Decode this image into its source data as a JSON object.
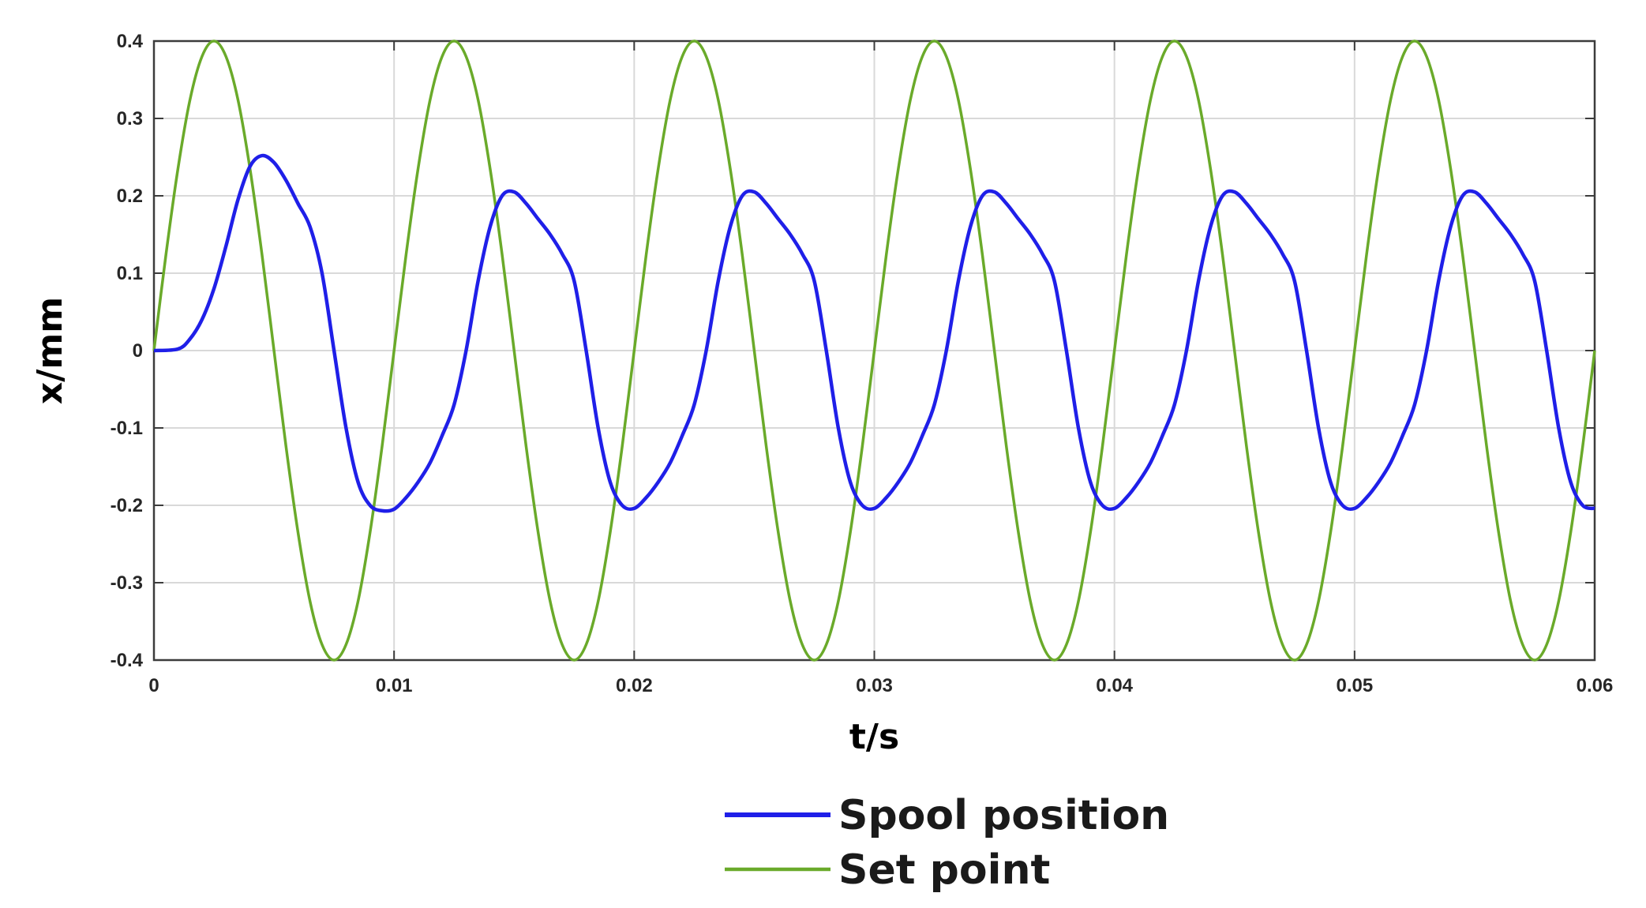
{
  "chart_data": {
    "type": "line",
    "xlabel": "t/s",
    "ylabel": "x/mm",
    "xlim": [
      0,
      0.06
    ],
    "ylim": [
      -0.4,
      0.4
    ],
    "xticks": [
      0,
      0.01,
      0.02,
      0.03,
      0.04,
      0.05,
      0.06
    ],
    "xtick_labels": [
      "0",
      "0.01",
      "0.02",
      "0.03",
      "0.04",
      "0.05",
      "0.06"
    ],
    "yticks": [
      0.4,
      0.3,
      0.2,
      0.1,
      0,
      -0.1,
      -0.2,
      -0.3,
      -0.4
    ],
    "ytick_labels": [
      "0.4",
      "0.3",
      "0.2",
      "0.1",
      "0",
      "-0.1",
      "-0.2",
      "-0.3",
      "-0.4"
    ],
    "grid": true,
    "legend_position": "bottom-center",
    "series": [
      {
        "name": "Spool position",
        "color": "#1f1fe8",
        "x": [
          0,
          0.001,
          0.0015,
          0.002,
          0.0025,
          0.003,
          0.0035,
          0.004,
          0.0045,
          0.005,
          0.0055,
          0.006,
          0.0065,
          0.007,
          0.0075,
          0.008,
          0.0085,
          0.009,
          0.0095,
          0.01,
          0.0105,
          0.011,
          0.0115,
          0.012,
          0.0125,
          0.013,
          0.0135,
          0.014,
          0.0145,
          0.015,
          0.0155,
          0.016,
          0.0165,
          0.017,
          0.0175,
          0.018,
          0.0185,
          0.019,
          0.0195,
          0.02,
          0.0205,
          0.021,
          0.0215,
          0.022,
          0.0225,
          0.023,
          0.0235,
          0.024,
          0.0245,
          0.025,
          0.0255,
          0.026,
          0.0265,
          0.027,
          0.0275,
          0.028,
          0.0285,
          0.029,
          0.0295,
          0.03,
          0.0305,
          0.031,
          0.0315,
          0.032,
          0.0325,
          0.033,
          0.0335,
          0.034,
          0.0345,
          0.035,
          0.0355,
          0.036,
          0.0365,
          0.037,
          0.0375,
          0.038,
          0.0385,
          0.039,
          0.0395,
          0.04,
          0.0405,
          0.041,
          0.0415,
          0.042,
          0.0425,
          0.043,
          0.0435,
          0.044,
          0.0445,
          0.045,
          0.0455,
          0.046,
          0.0465,
          0.047,
          0.0475,
          0.048,
          0.0485,
          0.049,
          0.0495,
          0.05,
          0.0505,
          0.051,
          0.0515,
          0.052,
          0.0525,
          0.053,
          0.0535,
          0.054,
          0.0545,
          0.055,
          0.0555,
          0.056,
          0.0565,
          0.057,
          0.0575,
          0.058,
          0.0585,
          0.059,
          0.0595,
          0.06
        ],
        "y": [
          0,
          0.002,
          0.015,
          0.04,
          0.08,
          0.135,
          0.195,
          0.238,
          0.252,
          0.243,
          0.22,
          0.19,
          0.16,
          0.1,
          0.0,
          -0.1,
          -0.17,
          -0.2,
          -0.207,
          -0.205,
          -0.19,
          -0.17,
          -0.145,
          -0.11,
          -0.07,
          0.0,
          0.09,
          0.16,
          0.2,
          0.205,
          0.19,
          0.17,
          0.15,
          0.125,
          0.09,
          0.0,
          -0.1,
          -0.17,
          -0.2,
          -0.204,
          -0.19,
          -0.17,
          -0.145,
          -0.11,
          -0.07,
          0.0,
          0.09,
          0.16,
          0.2,
          0.205,
          0.19,
          0.17,
          0.15,
          0.125,
          0.09,
          0.0,
          -0.1,
          -0.17,
          -0.2,
          -0.204,
          -0.19,
          -0.17,
          -0.145,
          -0.11,
          -0.07,
          0.0,
          0.09,
          0.16,
          0.2,
          0.205,
          0.19,
          0.17,
          0.15,
          0.125,
          0.09,
          0.0,
          -0.1,
          -0.17,
          -0.2,
          -0.204,
          -0.19,
          -0.17,
          -0.145,
          -0.11,
          -0.07,
          0.0,
          0.09,
          0.16,
          0.2,
          0.205,
          0.19,
          0.17,
          0.15,
          0.125,
          0.09,
          0.0,
          -0.1,
          -0.17,
          -0.2,
          -0.204,
          -0.19,
          -0.17,
          -0.145,
          -0.11,
          -0.07,
          0.0,
          0.09,
          0.16,
          0.2,
          0.205,
          0.19,
          0.17,
          0.15,
          0.125,
          0.09,
          0.0,
          -0.1,
          -0.17,
          -0.2,
          -0.204
        ]
      },
      {
        "name": "Set point",
        "color": "#6aaa2a",
        "x": [
          0,
          0.0005,
          0.001,
          0.0015,
          0.002,
          0.0025,
          0.003,
          0.0035,
          0.004,
          0.0045,
          0.005,
          0.0055,
          0.006,
          0.0065,
          0.007,
          0.0075,
          0.008,
          0.0085,
          0.009,
          0.0095,
          0.01,
          0.0105,
          0.011,
          0.0115,
          0.012,
          0.0125,
          0.013,
          0.0135,
          0.014,
          0.0145,
          0.015,
          0.0155,
          0.016,
          0.0165,
          0.017,
          0.0175,
          0.018,
          0.0185,
          0.019,
          0.0195,
          0.02,
          0.0205,
          0.021,
          0.0215,
          0.022,
          0.0225,
          0.023,
          0.0235,
          0.024,
          0.0245,
          0.025,
          0.0255,
          0.026,
          0.0265,
          0.027,
          0.0275,
          0.028,
          0.0285,
          0.029,
          0.0295,
          0.03,
          0.0305,
          0.031,
          0.0315,
          0.032,
          0.0325,
          0.033,
          0.0335,
          0.034,
          0.0345,
          0.035,
          0.0355,
          0.036,
          0.0365,
          0.037,
          0.0375,
          0.038,
          0.0385,
          0.039,
          0.0395,
          0.04,
          0.0405,
          0.041,
          0.0415,
          0.042,
          0.0425,
          0.043,
          0.0435,
          0.044,
          0.0445,
          0.045,
          0.0455,
          0.046,
          0.0465,
          0.047,
          0.0475,
          0.048,
          0.0485,
          0.049,
          0.0495,
          0.05,
          0.0505,
          0.051,
          0.0515,
          0.052,
          0.0525,
          0.053,
          0.0535,
          0.054,
          0.0545,
          0.055,
          0.0555,
          0.056,
          0.0565,
          0.057,
          0.0575,
          0.058,
          0.0585,
          0.059,
          0.0595,
          0.06
        ],
        "y": [
          0,
          0.124,
          0.235,
          0.324,
          0.38,
          0.4,
          0.38,
          0.324,
          0.235,
          0.124,
          0,
          -0.124,
          -0.235,
          -0.324,
          -0.38,
          -0.4,
          -0.38,
          -0.324,
          -0.235,
          -0.124,
          0,
          0.124,
          0.235,
          0.324,
          0.38,
          0.4,
          0.38,
          0.324,
          0.235,
          0.124,
          0,
          -0.124,
          -0.235,
          -0.324,
          -0.38,
          -0.4,
          -0.38,
          -0.324,
          -0.235,
          -0.124,
          0,
          0.124,
          0.235,
          0.324,
          0.38,
          0.4,
          0.38,
          0.324,
          0.235,
          0.124,
          0,
          -0.124,
          -0.235,
          -0.324,
          -0.38,
          -0.4,
          -0.38,
          -0.324,
          -0.235,
          -0.124,
          0,
          0.124,
          0.235,
          0.324,
          0.38,
          0.4,
          0.38,
          0.324,
          0.235,
          0.124,
          0,
          -0.124,
          -0.235,
          -0.324,
          -0.38,
          -0.4,
          -0.38,
          -0.324,
          -0.235,
          -0.124,
          0,
          0.124,
          0.235,
          0.324,
          0.38,
          0.4,
          0.38,
          0.324,
          0.235,
          0.124,
          0,
          -0.124,
          -0.235,
          -0.324,
          -0.38,
          -0.4,
          -0.38,
          -0.324,
          -0.235,
          -0.124,
          0,
          0.124,
          0.235,
          0.324,
          0.38,
          0.4,
          0.38,
          0.324,
          0.235,
          0.124,
          0,
          -0.124,
          -0.235,
          -0.324,
          -0.38,
          -0.4,
          -0.38,
          -0.324,
          -0.235,
          -0.124,
          0
        ]
      }
    ]
  }
}
